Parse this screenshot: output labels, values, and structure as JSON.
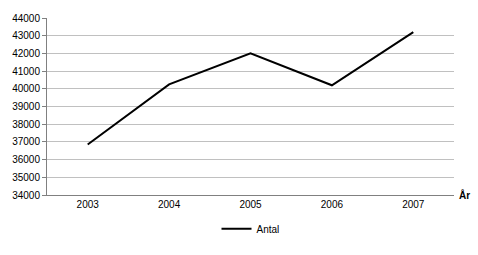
{
  "chart_data": {
    "type": "line",
    "x_label": "År",
    "categories": [
      "2003",
      "2004",
      "2005",
      "2006",
      "2007"
    ],
    "series": [
      {
        "name": "Antal",
        "color": "#000000",
        "values": [
          36850,
          40250,
          42000,
          40200,
          43200
        ]
      }
    ],
    "ylim": [
      34000,
      44000
    ],
    "yticks": [
      34000,
      35000,
      36000,
      37000,
      38000,
      39000,
      40000,
      41000,
      42000,
      43000,
      44000
    ],
    "grid": true,
    "legend": "bottom"
  }
}
